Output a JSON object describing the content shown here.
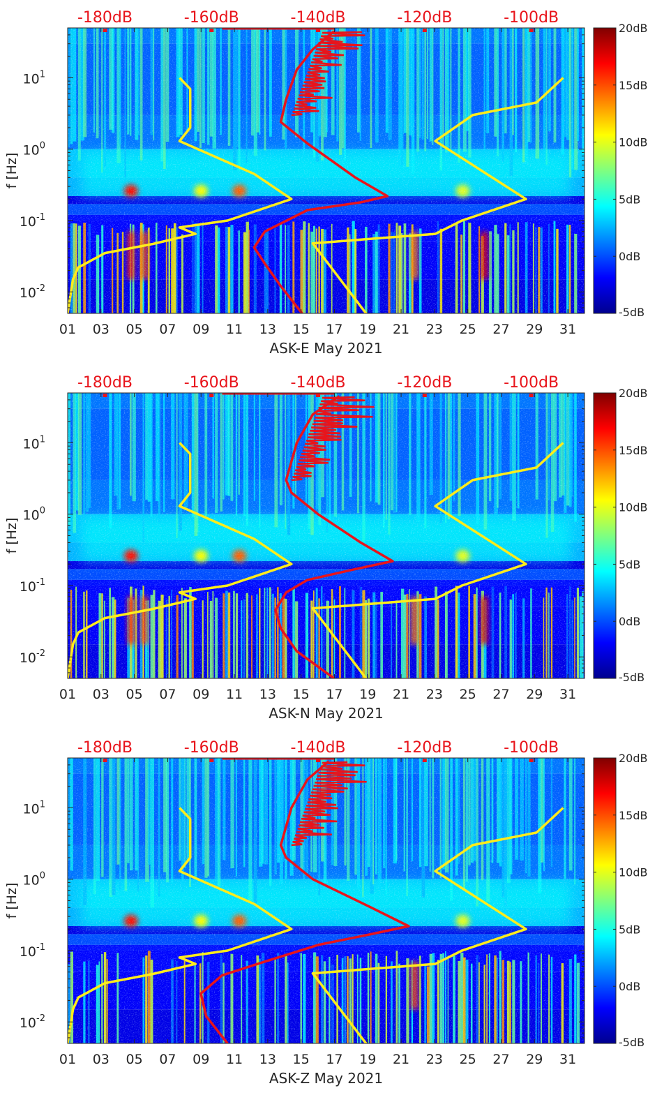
{
  "chart_data": [
    {
      "type": "heatmap",
      "panel": "ASK-E",
      "xlabel": "ASK-E May 2021",
      "ylabel": "f [Hz]",
      "x_ticks": [
        "01",
        "03",
        "05",
        "07",
        "09",
        "11",
        "13",
        "15",
        "17",
        "19",
        "21",
        "23",
        "25",
        "27",
        "29",
        "31"
      ],
      "x_tick_days": [
        1,
        3,
        5,
        7,
        9,
        11,
        13,
        15,
        17,
        19,
        21,
        23,
        25,
        27,
        29,
        31
      ],
      "xlim_days": [
        1,
        32
      ],
      "y_scale": "log",
      "ylim_hz": [
        0.005,
        50
      ],
      "y_ticks": [
        {
          "base": "10",
          "exp": "-2",
          "value": 0.01
        },
        {
          "base": "10",
          "exp": "-1",
          "value": 0.1
        },
        {
          "base": "10",
          "exp": "0",
          "value": 1
        },
        {
          "base": "10",
          "exp": "1",
          "value": 10
        }
      ],
      "top_axis": {
        "labels": [
          "-180dB",
          "-160dB",
          "-140dB",
          "-120dB",
          "-100dB"
        ],
        "values_db": [
          -180,
          -160,
          -140,
          -120,
          -100
        ],
        "range_db": [
          -187,
          -90
        ],
        "color": "#e8141b"
      },
      "colorbar": {
        "labels": [
          "20dB",
          "15dB",
          "10dB",
          "5dB",
          "0dB",
          "-5dB"
        ],
        "values_db": [
          20,
          15,
          10,
          5,
          0,
          -5
        ],
        "range_db": [
          -5,
          20
        ],
        "colormap": "jet"
      },
      "curves": [
        {
          "name": "low-noise model",
          "color": "#ffec1c",
          "points_db_hz": [
            [
              -187,
              0.005
            ],
            [
              -186,
              0.015
            ],
            [
              -185,
              0.022
            ],
            [
              -180,
              0.035
            ],
            [
              -171,
              0.047
            ],
            [
              -163,
              0.065
            ],
            [
              -166,
              0.08
            ],
            [
              -157,
              0.1
            ],
            [
              -145,
              0.2
            ],
            [
              -152,
              0.45
            ],
            [
              -166,
              1.3
            ],
            [
              -164,
              2
            ],
            [
              -164,
              7
            ],
            [
              -166,
              10
            ]
          ]
        },
        {
          "name": "high-noise model",
          "color": "#ffec1c",
          "points_db_hz": [
            [
              -131,
              0.005
            ],
            [
              -141,
              0.048
            ],
            [
              -118,
              0.065
            ],
            [
              -113,
              0.1
            ],
            [
              -101,
              0.2
            ],
            [
              -118,
              1.3
            ],
            [
              -111,
              3
            ],
            [
              -99,
              4.5
            ],
            [
              -94,
              10
            ]
          ]
        },
        {
          "name": "median PSD",
          "color": "#e8141b",
          "points_db_hz": [
            [
              -143,
              0.005
            ],
            [
              -147,
              0.012
            ],
            [
              -150,
              0.025
            ],
            [
              -152,
              0.042
            ],
            [
              -150,
              0.07
            ],
            [
              -142,
              0.14
            ],
            [
              -132,
              0.18
            ],
            [
              -127,
              0.22
            ],
            [
              -133,
              0.4
            ],
            [
              -142,
              1.2
            ],
            [
              -147,
              2.4
            ],
            [
              -146,
              5
            ],
            [
              -144,
              13
            ],
            [
              -141,
              25
            ],
            [
              -137,
              45
            ]
          ]
        }
      ]
    },
    {
      "type": "heatmap",
      "panel": "ASK-N",
      "xlabel": "ASK-N May 2021",
      "ylabel": "f [Hz]",
      "x_ticks": [
        "01",
        "03",
        "05",
        "07",
        "09",
        "11",
        "13",
        "15",
        "17",
        "19",
        "21",
        "23",
        "25",
        "27",
        "29",
        "31"
      ],
      "x_tick_days": [
        1,
        3,
        5,
        7,
        9,
        11,
        13,
        15,
        17,
        19,
        21,
        23,
        25,
        27,
        29,
        31
      ],
      "xlim_days": [
        1,
        32
      ],
      "y_scale": "log",
      "ylim_hz": [
        0.005,
        50
      ],
      "y_ticks": [
        {
          "base": "10",
          "exp": "-2",
          "value": 0.01
        },
        {
          "base": "10",
          "exp": "-1",
          "value": 0.1
        },
        {
          "base": "10",
          "exp": "0",
          "value": 1
        },
        {
          "base": "10",
          "exp": "1",
          "value": 10
        }
      ],
      "top_axis": {
        "labels": [
          "-180dB",
          "-160dB",
          "-140dB",
          "-120dB",
          "-100dB"
        ],
        "values_db": [
          -180,
          -160,
          -140,
          -120,
          -100
        ],
        "range_db": [
          -187,
          -90
        ],
        "color": "#e8141b"
      },
      "colorbar": {
        "labels": [
          "20dB",
          "15dB",
          "10dB",
          "5dB",
          "0dB",
          "-5dB"
        ],
        "values_db": [
          20,
          15,
          10,
          5,
          0,
          -5
        ],
        "range_db": [
          -5,
          20
        ],
        "colormap": "jet"
      },
      "curves": [
        {
          "name": "low-noise model",
          "color": "#ffec1c",
          "points_db_hz": [
            [
              -187,
              0.005
            ],
            [
              -186,
              0.015
            ],
            [
              -185,
              0.022
            ],
            [
              -180,
              0.035
            ],
            [
              -171,
              0.047
            ],
            [
              -163,
              0.065
            ],
            [
              -166,
              0.08
            ],
            [
              -157,
              0.1
            ],
            [
              -145,
              0.2
            ],
            [
              -152,
              0.45
            ],
            [
              -166,
              1.3
            ],
            [
              -164,
              2
            ],
            [
              -164,
              7
            ],
            [
              -166,
              10
            ]
          ]
        },
        {
          "name": "high-noise model",
          "color": "#ffec1c",
          "points_db_hz": [
            [
              -131,
              0.005
            ],
            [
              -141,
              0.048
            ],
            [
              -118,
              0.065
            ],
            [
              -113,
              0.1
            ],
            [
              -101,
              0.2
            ],
            [
              -118,
              1.3
            ],
            [
              -111,
              3
            ],
            [
              -99,
              4.5
            ],
            [
              -94,
              10
            ]
          ]
        },
        {
          "name": "median PSD",
          "color": "#e8141b",
          "points_db_hz": [
            [
              -137,
              0.005
            ],
            [
              -144,
              0.012
            ],
            [
              -147,
              0.025
            ],
            [
              -148,
              0.045
            ],
            [
              -146,
              0.08
            ],
            [
              -142,
              0.12
            ],
            [
              -133,
              0.17
            ],
            [
              -126,
              0.22
            ],
            [
              -132,
              0.4
            ],
            [
              -140,
              1
            ],
            [
              -145,
              2
            ],
            [
              -146,
              3
            ],
            [
              -144,
              10
            ],
            [
              -141,
              25
            ],
            [
              -136,
              45
            ]
          ]
        }
      ]
    },
    {
      "type": "heatmap",
      "panel": "ASK-Z",
      "xlabel": "ASK-Z May 2021",
      "ylabel": "f [Hz]",
      "x_ticks": [
        "01",
        "03",
        "05",
        "07",
        "09",
        "11",
        "13",
        "15",
        "17",
        "19",
        "21",
        "23",
        "25",
        "27",
        "29",
        "31"
      ],
      "x_tick_days": [
        1,
        3,
        5,
        7,
        9,
        11,
        13,
        15,
        17,
        19,
        21,
        23,
        25,
        27,
        29,
        31
      ],
      "xlim_days": [
        1,
        32
      ],
      "y_scale": "log",
      "ylim_hz": [
        0.005,
        50
      ],
      "y_ticks": [
        {
          "base": "10",
          "exp": "-2",
          "value": 0.01
        },
        {
          "base": "10",
          "exp": "-1",
          "value": 0.1
        },
        {
          "base": "10",
          "exp": "0",
          "value": 1
        },
        {
          "base": "10",
          "exp": "1",
          "value": 10
        }
      ],
      "top_axis": {
        "labels": [
          "-180dB",
          "-160dB",
          "-140dB",
          "-120dB",
          "-100dB"
        ],
        "values_db": [
          -180,
          -160,
          -140,
          -120,
          -100
        ],
        "range_db": [
          -187,
          -90
        ],
        "color": "#e8141b"
      },
      "colorbar": {
        "labels": [
          "20dB",
          "15dB",
          "10dB",
          "5dB",
          "0dB",
          "-5dB"
        ],
        "values_db": [
          20,
          15,
          10,
          5,
          0,
          -5
        ],
        "range_db": [
          -5,
          20
        ],
        "colormap": "jet"
      },
      "curves": [
        {
          "name": "low-noise model",
          "color": "#ffec1c",
          "points_db_hz": [
            [
              -187,
              0.005
            ],
            [
              -186,
              0.015
            ],
            [
              -185,
              0.022
            ],
            [
              -180,
              0.035
            ],
            [
              -171,
              0.047
            ],
            [
              -163,
              0.065
            ],
            [
              -166,
              0.08
            ],
            [
              -157,
              0.1
            ],
            [
              -145,
              0.2
            ],
            [
              -152,
              0.45
            ],
            [
              -166,
              1.3
            ],
            [
              -164,
              2
            ],
            [
              -164,
              7
            ],
            [
              -166,
              10
            ]
          ]
        },
        {
          "name": "high-noise model",
          "color": "#ffec1c",
          "points_db_hz": [
            [
              -131,
              0.005
            ],
            [
              -141,
              0.048
            ],
            [
              -118,
              0.065
            ],
            [
              -113,
              0.1
            ],
            [
              -101,
              0.2
            ],
            [
              -118,
              1.3
            ],
            [
              -111,
              3
            ],
            [
              -99,
              4.5
            ],
            [
              -94,
              10
            ]
          ]
        },
        {
          "name": "median PSD",
          "color": "#e8141b",
          "points_db_hz": [
            [
              -157,
              0.005
            ],
            [
              -161,
              0.012
            ],
            [
              -162,
              0.025
            ],
            [
              -158,
              0.045
            ],
            [
              -150,
              0.07
            ],
            [
              -140,
              0.12
            ],
            [
              -130,
              0.17
            ],
            [
              -123,
              0.22
            ],
            [
              -130,
              0.4
            ],
            [
              -141,
              1
            ],
            [
              -146,
              2
            ],
            [
              -147,
              3
            ],
            [
              -145,
              10
            ],
            [
              -142,
              25
            ],
            [
              -138,
              45
            ]
          ]
        }
      ]
    }
  ]
}
